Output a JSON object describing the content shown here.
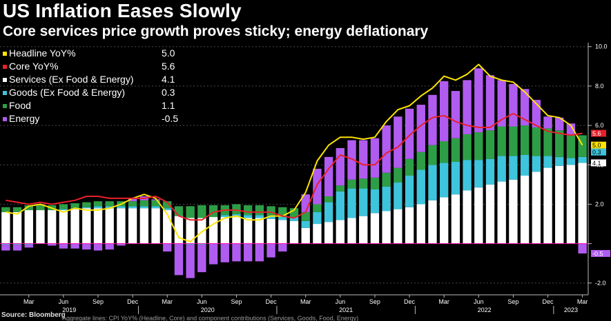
{
  "title": "US Inflation Eases Slowly",
  "subtitle": "Core services price growth proves sticky; energy deflationary",
  "footer": {
    "source": "Source: Bloomberg",
    "fine_print": "Aggregate lines: CPI YoY% (Headline, Core) and component contributions (Services, Goods, Food, Energy)"
  },
  "legend": [
    {
      "name": "Headline YoY%",
      "value": "5.0",
      "color": "#ffe500"
    },
    {
      "name": "Core YoY%",
      "value": "5.6",
      "color": "#e8202a"
    },
    {
      "name": "Services (Ex Food & Energy)",
      "value": "4.1",
      "color": "#ffffff"
    },
    {
      "name": "Goods (Ex Food & Energy)",
      "value": "0.3",
      "color": "#3ec4dc"
    },
    {
      "name": "Food",
      "value": "1.1",
      "color": "#2e9e46"
    },
    {
      "name": "Energy",
      "value": "-0.5",
      "color": "#b15cf0"
    }
  ],
  "end_labels": [
    {
      "text": "5.6",
      "y": 5.6,
      "bg": "#e8202a",
      "fg": "#ffffff"
    },
    {
      "text": "5.0",
      "y": 5.0,
      "bg": "#ffe500",
      "fg": "#000000"
    },
    {
      "text": "0.3",
      "y": 4.65,
      "bg": "#3ec4dc",
      "fg": "#000000"
    },
    {
      "text": "4.1",
      "y": 4.1,
      "bg": "#ffffff",
      "fg": "#000000"
    },
    {
      "text": "-0.5",
      "y": -0.5,
      "bg": "#b15cf0",
      "fg": "#ffffff"
    }
  ],
  "chart_data": {
    "type": "bar",
    "stacked": true,
    "title": "US Inflation Eases Slowly",
    "subtitle": "Core services price growth proves sticky; energy deflationary",
    "ylim": [
      -2.6,
      10.2
    ],
    "yticks": [
      -2.0,
      0.0,
      2.0,
      4.0,
      6.0,
      8.0,
      10.0
    ],
    "ytick_labels": [
      "-2.0",
      "",
      "2.0",
      "4.0",
      "6.0",
      "8.0",
      "10.0"
    ],
    "grid": true,
    "x_month_ticks": [
      {
        "label": "Mar",
        "index": 2
      },
      {
        "label": "Jun",
        "index": 5
      },
      {
        "label": "Sep",
        "index": 8
      },
      {
        "label": "Dec",
        "index": 11
      },
      {
        "label": "Mar",
        "index": 14
      },
      {
        "label": "Jun",
        "index": 17
      },
      {
        "label": "Sep",
        "index": 20
      },
      {
        "label": "Dec",
        "index": 23
      },
      {
        "label": "Mar",
        "index": 26
      },
      {
        "label": "Jun",
        "index": 29
      },
      {
        "label": "Sep",
        "index": 32
      },
      {
        "label": "Dec",
        "index": 35
      },
      {
        "label": "Mar",
        "index": 38
      },
      {
        "label": "Jun",
        "index": 41
      },
      {
        "label": "Sep",
        "index": 44
      },
      {
        "label": "Dec",
        "index": 47
      },
      {
        "label": "Mar",
        "index": 50
      }
    ],
    "x_year_ticks": [
      {
        "label": "2019",
        "start": 0,
        "end": 11
      },
      {
        "label": "2020",
        "start": 12,
        "end": 23
      },
      {
        "label": "2021",
        "start": 24,
        "end": 35
      },
      {
        "label": "2022",
        "start": 36,
        "end": 47
      },
      {
        "label": "2023",
        "start": 48,
        "end": 50
      }
    ],
    "categories": [
      "Jan 2019",
      "Feb 2019",
      "Mar 2019",
      "Apr 2019",
      "May 2019",
      "Jun 2019",
      "Jul 2019",
      "Aug 2019",
      "Sep 2019",
      "Oct 2019",
      "Nov 2019",
      "Dec 2019",
      "Jan 2020",
      "Feb 2020",
      "Mar 2020",
      "Apr 2020",
      "May 2020",
      "Jun 2020",
      "Jul 2020",
      "Aug 2020",
      "Sep 2020",
      "Oct 2020",
      "Nov 2020",
      "Dec 2020",
      "Jan 2021",
      "Feb 2021",
      "Mar 2021",
      "Apr 2021",
      "May 2021",
      "Jun 2021",
      "Jul 2021",
      "Aug 2021",
      "Sep 2021",
      "Oct 2021",
      "Nov 2021",
      "Dec 2021",
      "Jan 2022",
      "Feb 2022",
      "Mar 2022",
      "Apr 2022",
      "May 2022",
      "Jun 2022",
      "Jul 2022",
      "Aug 2022",
      "Sep 2022",
      "Oct 2022",
      "Nov 2022",
      "Dec 2022",
      "Jan 2023",
      "Feb 2023",
      "Mar 2023"
    ],
    "series": [
      {
        "name": "Services (Ex Food & Energy)",
        "color": "#ffffff",
        "values": [
          1.6,
          1.6,
          1.7,
          1.7,
          1.7,
          1.7,
          1.75,
          1.8,
          1.8,
          1.8,
          1.8,
          1.8,
          1.8,
          1.8,
          1.7,
          1.4,
          1.3,
          1.3,
          1.35,
          1.35,
          1.35,
          1.3,
          1.3,
          1.25,
          1.2,
          1.15,
          0.8,
          1.0,
          1.1,
          1.2,
          1.3,
          1.4,
          1.55,
          1.65,
          1.75,
          1.85,
          2.0,
          2.2,
          2.35,
          2.5,
          2.7,
          2.85,
          3.0,
          3.15,
          3.25,
          3.45,
          3.65,
          3.85,
          3.95,
          4.0,
          4.1
        ]
      },
      {
        "name": "Goods (Ex Food & Energy)",
        "color": "#3ec4dc",
        "values": [
          -0.05,
          -0.05,
          -0.05,
          0.0,
          0.0,
          0.05,
          0.05,
          0.05,
          0.1,
          0.1,
          0.1,
          0.1,
          0.1,
          0.1,
          0.1,
          0.0,
          -0.05,
          -0.05,
          0.0,
          0.1,
          0.15,
          0.15,
          0.15,
          0.15,
          0.15,
          0.2,
          0.35,
          0.6,
          1.0,
          1.45,
          1.5,
          1.4,
          1.2,
          1.25,
          1.35,
          1.6,
          1.75,
          1.8,
          1.75,
          1.65,
          1.55,
          1.4,
          1.3,
          1.3,
          1.2,
          1.05,
          0.8,
          0.6,
          0.45,
          0.35,
          0.3
        ]
      },
      {
        "name": "Food",
        "color": "#2e9e46",
        "values": [
          0.25,
          0.25,
          0.25,
          0.25,
          0.25,
          0.25,
          0.25,
          0.25,
          0.25,
          0.25,
          0.25,
          0.25,
          0.3,
          0.3,
          0.35,
          0.5,
          0.6,
          0.65,
          0.6,
          0.5,
          0.5,
          0.5,
          0.5,
          0.5,
          0.5,
          0.45,
          0.45,
          0.4,
          0.3,
          0.3,
          0.45,
          0.5,
          0.6,
          0.7,
          0.75,
          0.85,
          0.9,
          1.0,
          1.1,
          1.2,
          1.3,
          1.4,
          1.45,
          1.5,
          1.5,
          1.5,
          1.45,
          1.4,
          1.35,
          1.2,
          1.1
        ]
      },
      {
        "name": "Energy",
        "color": "#b15cf0",
        "values": [
          -0.3,
          -0.3,
          -0.15,
          0.05,
          -0.1,
          -0.25,
          -0.25,
          -0.3,
          -0.35,
          -0.3,
          -0.1,
          0.15,
          0.2,
          0.05,
          -0.4,
          -1.6,
          -1.7,
          -1.4,
          -1.05,
          -0.95,
          -0.9,
          -0.9,
          -0.9,
          -0.7,
          -0.4,
          0.0,
          0.9,
          1.8,
          2.0,
          1.9,
          2.0,
          1.95,
          2.0,
          2.4,
          2.6,
          2.55,
          2.4,
          2.55,
          3.05,
          2.4,
          2.75,
          3.25,
          2.8,
          2.35,
          2.15,
          1.85,
          1.4,
          0.6,
          0.65,
          0.55,
          -0.5
        ]
      }
    ],
    "lines": [
      {
        "name": "Headline YoY%",
        "color": "#ffe500",
        "values": [
          1.6,
          1.5,
          1.9,
          2.0,
          1.8,
          1.6,
          1.8,
          1.7,
          1.7,
          1.8,
          2.0,
          2.3,
          2.5,
          2.3,
          1.5,
          0.3,
          0.1,
          0.6,
          1.0,
          1.3,
          1.4,
          1.2,
          1.2,
          1.4,
          1.4,
          1.7,
          2.6,
          4.2,
          5.0,
          5.4,
          5.4,
          5.3,
          5.4,
          6.2,
          6.8,
          7.0,
          7.5,
          7.9,
          8.5,
          8.3,
          8.6,
          9.1,
          8.5,
          8.3,
          8.2,
          7.7,
          7.1,
          6.5,
          6.4,
          6.0,
          5.0
        ]
      },
      {
        "name": "Core YoY%",
        "color": "#e8202a",
        "values": [
          2.2,
          2.1,
          2.0,
          2.1,
          2.0,
          2.1,
          2.2,
          2.4,
          2.4,
          2.3,
          2.3,
          2.3,
          2.3,
          2.4,
          2.1,
          1.4,
          1.2,
          1.2,
          1.6,
          1.7,
          1.7,
          1.6,
          1.6,
          1.6,
          1.4,
          1.3,
          1.6,
          3.0,
          3.8,
          4.5,
          4.3,
          4.0,
          4.0,
          4.6,
          4.9,
          5.5,
          6.0,
          6.4,
          6.5,
          6.2,
          6.0,
          5.9,
          5.9,
          6.3,
          6.6,
          6.3,
          6.0,
          5.7,
          5.6,
          5.5,
          5.6
        ]
      }
    ]
  }
}
